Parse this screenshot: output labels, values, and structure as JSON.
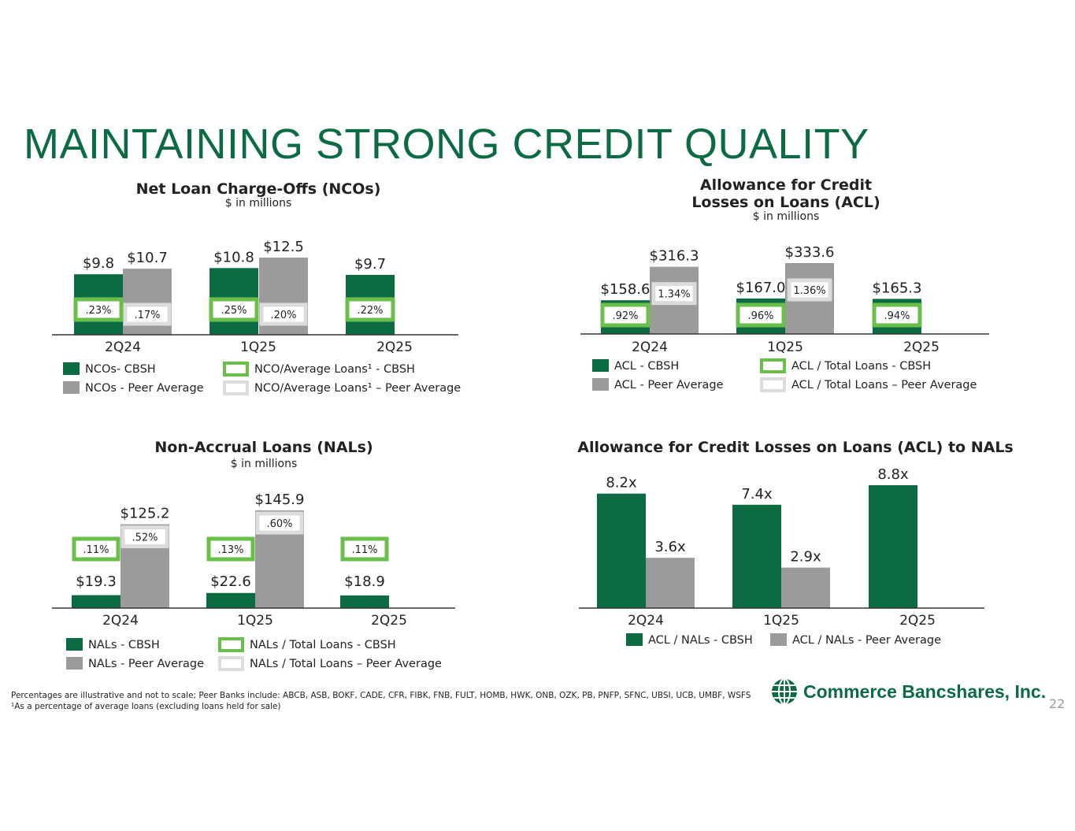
{
  "page": {
    "title": "MAINTAINING STRONG CREDIT QUALITY",
    "footnote_line1": "Percentages are illustrative and not to scale; Peer Banks include: ABCB, ASB, BOKF, CADE, CFR, FIBK, FNB, FULT, HOMB, HWK, ONB, OZK, PB, PNFP, SFNC, UBSI, UCB, UMBF, WSFS",
    "footnote_line2": "¹As a percentage of average loans (excluding loans held for sale)",
    "logo_text": "Commerce Bancshares, Inc.",
    "page_number": "22"
  },
  "colors": {
    "title": "#0d6b44",
    "cbsh": "#0d6b44",
    "peer": "#9b9b9b",
    "cbsh_ratio_box": "#6abf4b",
    "peer_ratio_box": "#dcdcdc",
    "axis": "#333333"
  },
  "chart_data": [
    {
      "id": "ncos",
      "type": "bar",
      "title": "Net Loan Charge-Offs (NCOs)",
      "subtitle": "$ in millions",
      "categories": [
        "2Q24",
        "1Q25",
        "2Q25"
      ],
      "series": [
        {
          "name": "NCOs- CBSH",
          "values": [
            9.8,
            10.8,
            9.7
          ],
          "labels": [
            "$9.8",
            "$10.8",
            "$9.7"
          ]
        },
        {
          "name": "NCOs - Peer Average",
          "values": [
            10.7,
            12.5,
            null
          ],
          "labels": [
            "$10.7",
            "$12.5",
            ""
          ]
        }
      ],
      "ratios": {
        "cbsh": {
          "name": "NCO/Average Loans¹ - CBSH",
          "labels": [
            ".23%",
            ".25%",
            ".22%"
          ]
        },
        "peer": {
          "name": "NCO/Average Loans¹ – Peer Average",
          "labels": [
            ".17%",
            ".20%",
            ""
          ]
        }
      },
      "ylim": [
        0,
        12.5
      ],
      "legend_position": "bottom"
    },
    {
      "id": "acl",
      "type": "bar",
      "title": "Allowance for Credit Losses on Loans (ACL)",
      "title_lines": [
        "Allowance for Credit",
        "Losses on Loans (ACL)"
      ],
      "subtitle": "$ in millions",
      "categories": [
        "2Q24",
        "1Q25",
        "2Q25"
      ],
      "series": [
        {
          "name": "ACL - CBSH",
          "values": [
            158.6,
            167.0,
            165.3
          ],
          "labels": [
            "$158.6",
            "$167.0",
            "$165.3"
          ]
        },
        {
          "name": "ACL - Peer Average",
          "values": [
            316.3,
            333.6,
            null
          ],
          "labels": [
            "$316.3",
            "$333.6",
            ""
          ]
        }
      ],
      "ratios": {
        "cbsh": {
          "name": "ACL / Total Loans - CBSH",
          "labels": [
            ".92%",
            ".96%",
            ".94%"
          ]
        },
        "peer": {
          "name": "ACL / Total Loans – Peer Average",
          "labels": [
            "1.34%",
            "1.36%",
            ""
          ]
        }
      },
      "ylim": [
        0,
        333.6
      ],
      "legend_position": "bottom"
    },
    {
      "id": "nals",
      "type": "bar",
      "title": "Non-Accrual Loans (NALs)",
      "subtitle": "$ in millions",
      "categories": [
        "2Q24",
        "1Q25",
        "2Q25"
      ],
      "series": [
        {
          "name": "NALs - CBSH",
          "values": [
            19.3,
            22.6,
            18.9
          ],
          "labels": [
            "$19.3",
            "$22.6",
            "$18.9"
          ]
        },
        {
          "name": "NALs - Peer Average",
          "values": [
            125.2,
            145.9,
            null
          ],
          "labels": [
            "$125.2",
            "$145.9",
            ""
          ]
        }
      ],
      "ratios": {
        "cbsh": {
          "name": "NALs / Total Loans - CBSH",
          "labels": [
            ".11%",
            ".13%",
            ".11%"
          ]
        },
        "peer": {
          "name": "NALs / Total Loans – Peer Average",
          "labels": [
            ".52%",
            ".60%",
            ""
          ]
        }
      },
      "ylim": [
        0,
        145.9
      ],
      "legend_position": "bottom"
    },
    {
      "id": "acl_nals",
      "type": "bar",
      "title": "Allowance for Credit Losses on Loans (ACL) to NALs",
      "subtitle": "",
      "categories": [
        "2Q24",
        "1Q25",
        "2Q25"
      ],
      "series": [
        {
          "name": "ACL / NALs - CBSH",
          "values": [
            8.2,
            7.4,
            8.8
          ],
          "labels": [
            "8.2x",
            "7.4x",
            "8.8x"
          ]
        },
        {
          "name": "ACL / NALs - Peer Average",
          "values": [
            3.6,
            2.9,
            null
          ],
          "labels": [
            "3.6x",
            "2.9x",
            ""
          ]
        }
      ],
      "ylim": [
        0,
        8.8
      ],
      "legend_position": "bottom"
    }
  ]
}
